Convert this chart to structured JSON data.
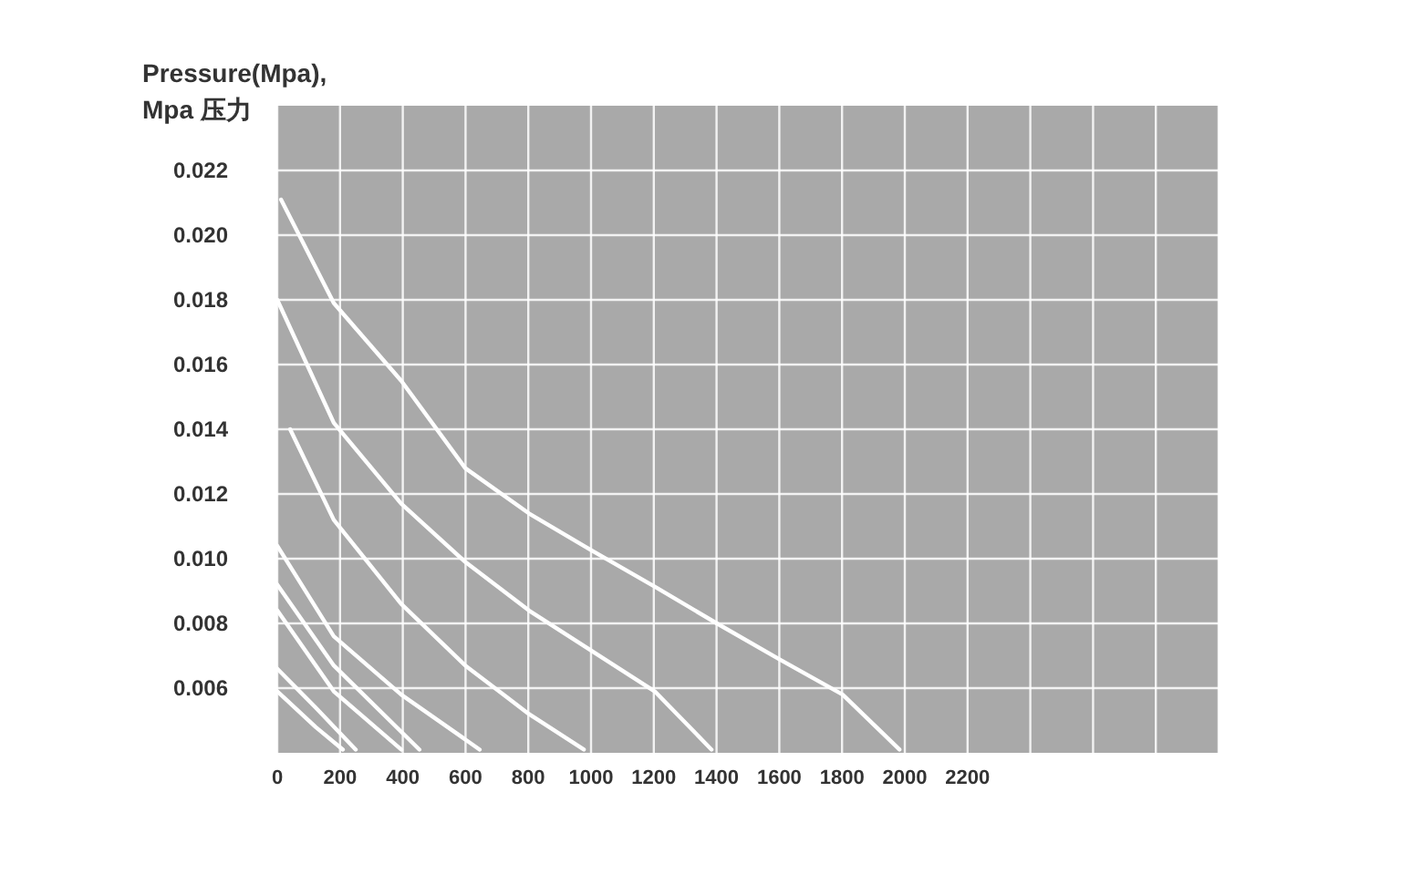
{
  "chart_data": {
    "type": "line",
    "ylabel": "Pressure(Mpa), Mpa 压力",
    "xlim": [
      0,
      3000
    ],
    "ylim": [
      0.004,
      0.024
    ],
    "xticks": [
      0,
      200,
      400,
      600,
      800,
      1000,
      1200,
      1400,
      1600,
      1800,
      2000,
      2200,
      {
        "value": 2400,
        "label": null
      },
      {
        "value": 2600,
        "label": null
      },
      {
        "value": 2800,
        "label": null
      },
      {
        "value": 3000,
        "label": null
      }
    ],
    "yticks": [
      0.006,
      0.008,
      {
        "value": 0.01,
        "label": "0.010"
      },
      0.012,
      0.014,
      0.016,
      0.018,
      {
        "value": 0.02,
        "label": "0.020"
      },
      0.022
    ],
    "grid": true,
    "marker": "none",
    "line_style": "solid",
    "series": [
      {
        "color": "#ffffff",
        "x": [
          12,
          180,
          395,
          599,
          802,
          994,
          1209,
          1401,
          1599,
          1802,
          1983
        ],
        "values": [
          0.0211,
          0.0179,
          0.0155,
          0.0128,
          0.0114,
          0.0103,
          0.0091,
          0.008,
          0.0069,
          0.0058,
          0.0041
        ]
      },
      {
        "color": "#ffffff",
        "x": [
          0,
          180,
          395,
          599,
          802,
          994,
          1203,
          1384
        ],
        "values": [
          0.018,
          0.0142,
          0.0117,
          0.0099,
          0.0084,
          0.0072,
          0.0059,
          0.0041
        ]
      },
      {
        "color": "#ffffff",
        "x": [
          41,
          180,
          395,
          599,
          802,
          977
        ],
        "values": [
          0.014,
          0.0112,
          0.0086,
          0.0067,
          0.0052,
          0.0041
        ]
      },
      {
        "color": "#ffffff",
        "x": [
          0,
          180,
          395,
          645
        ],
        "values": [
          0.0104,
          0.0076,
          0.0058,
          0.0041
        ]
      },
      {
        "color": "#ffffff",
        "x": [
          0,
          180,
          453
        ],
        "values": [
          0.0092,
          0.0067,
          0.0041
        ]
      },
      {
        "color": "#ffffff",
        "x": [
          0,
          180,
          395
        ],
        "values": [
          0.0084,
          0.0059,
          0.0041
        ]
      },
      {
        "color": "#ffffff",
        "x": [
          0,
          122,
          250
        ],
        "values": [
          0.0066,
          0.0054,
          0.0041
        ]
      },
      {
        "color": "#ffffff",
        "x": [
          0,
          122,
          209
        ],
        "values": [
          0.0059,
          0.0048,
          0.0041
        ]
      }
    ]
  }
}
